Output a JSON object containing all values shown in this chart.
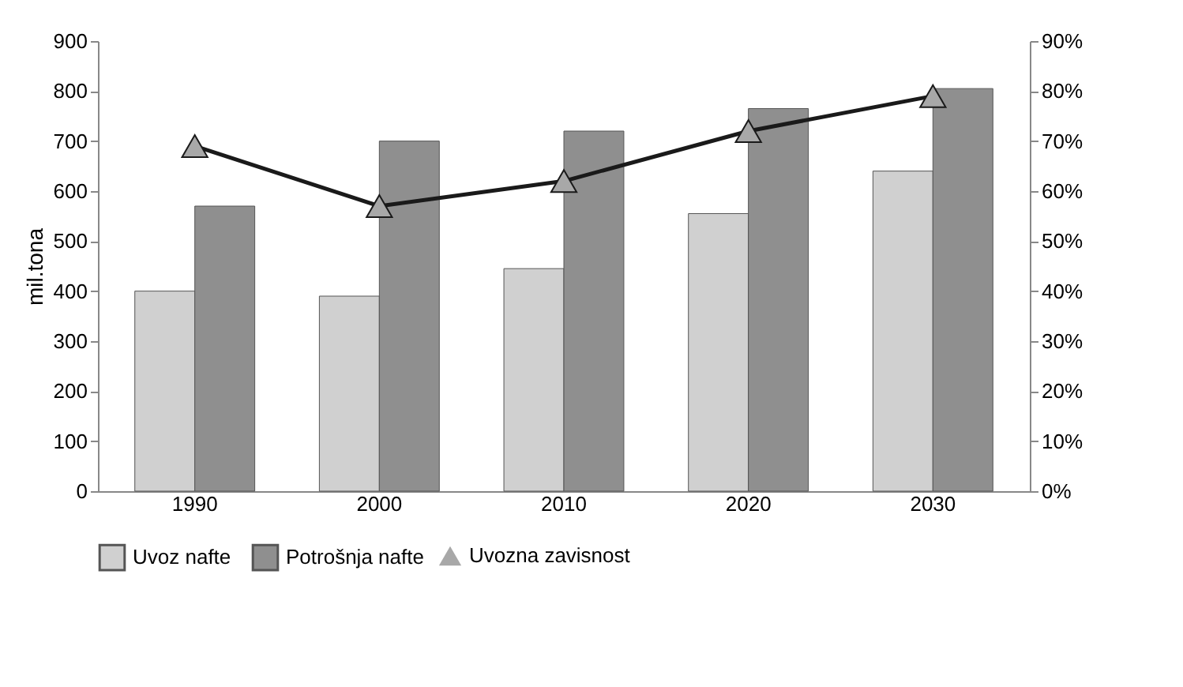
{
  "chart_data": {
    "type": "bar",
    "ylabel": "mil.tona",
    "categories": [
      "1990",
      "2000",
      "2010",
      "2020",
      "2030"
    ],
    "series": [
      {
        "name": "Uvoz nafte",
        "color": "#d0d0d0",
        "values": [
          400,
          390,
          445,
          555,
          640
        ]
      },
      {
        "name": "Potrošnja nafte",
        "color": "#8f8f8f",
        "values": [
          570,
          700,
          720,
          765,
          805
        ]
      },
      {
        "name": "Uvozna zavisnost",
        "type": "line",
        "axis": "y2",
        "color": "#1a1a1a",
        "marker": "triangle",
        "values": [
          69,
          57,
          62,
          72,
          79
        ]
      }
    ],
    "ylim": [
      0,
      900
    ],
    "yticks": [
      0,
      100,
      200,
      300,
      400,
      500,
      600,
      700,
      800,
      900
    ],
    "y2lim": [
      0,
      90
    ],
    "y2ticks": [
      {
        "value": 0,
        "label": "0%"
      },
      {
        "value": 10,
        "label": "10%"
      },
      {
        "value": 20,
        "label": "20%"
      },
      {
        "value": 30,
        "label": "30%"
      },
      {
        "value": 40,
        "label": "40%"
      },
      {
        "value": 50,
        "label": "50%"
      },
      {
        "value": 60,
        "label": "60%"
      },
      {
        "value": 70,
        "label": "70%"
      },
      {
        "value": 80,
        "label": "80%"
      },
      {
        "value": 90,
        "label": "90%"
      }
    ],
    "legend": "bottom",
    "grid": false
  }
}
